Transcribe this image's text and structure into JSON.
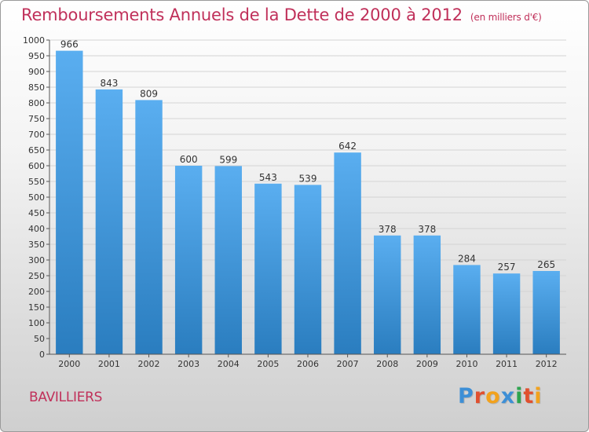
{
  "title": "Remboursements Annuels de la Dette de 2000 à 2012",
  "subtitle": "(en milliers d'€)",
  "city": "BAVILLIERS",
  "brand": {
    "text": "Proxiti",
    "letters": [
      "P",
      "r",
      "o",
      "x",
      "i",
      "t",
      "i"
    ],
    "colors": [
      "#3d8fd6",
      "#e0502f",
      "#f2a21d",
      "#3d8fd6",
      "#2ea44f",
      "#e0502f",
      "#f2a21d"
    ]
  },
  "colors": {
    "title": "#c0305a",
    "bar_top": "#5aaef0",
    "bar_bottom": "#2a7dbf"
  },
  "chart_data": {
    "type": "bar",
    "title": "Remboursements Annuels de la Dette de 2000 à 2012",
    "subtitle": "(en milliers d'€)",
    "xlabel": "",
    "ylabel": "",
    "categories": [
      "2000",
      "2001",
      "2002",
      "2003",
      "2004",
      "2005",
      "2006",
      "2007",
      "2008",
      "2009",
      "2010",
      "2011",
      "2012"
    ],
    "values": [
      966,
      843,
      809,
      600,
      599,
      543,
      539,
      642,
      378,
      378,
      284,
      257,
      265
    ],
    "ylim": [
      0,
      1000
    ],
    "yticks": [
      0,
      50,
      100,
      150,
      200,
      250,
      300,
      350,
      400,
      450,
      500,
      550,
      600,
      650,
      700,
      750,
      800,
      850,
      900,
      950,
      1000
    ],
    "grid": true,
    "legend": "none"
  }
}
